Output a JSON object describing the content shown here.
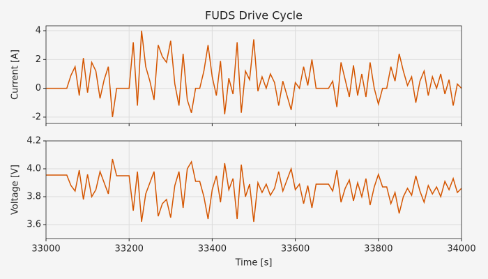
{
  "chart_data": [
    {
      "type": "line",
      "title": "FUDS Drive Cycle",
      "ylabel": "Current [A]",
      "color": "#d45500",
      "grid": true,
      "xlim": [
        33000,
        34000
      ],
      "ylim": [
        -2.44,
        4.34
      ],
      "yticks": [
        -2,
        0,
        2,
        4
      ],
      "x": [
        33000,
        33010,
        33020,
        33030,
        33040,
        33050,
        33060,
        33070,
        33080,
        33090,
        33100,
        33110,
        33120,
        33130,
        33140,
        33150,
        33160,
        33170,
        33180,
        33190,
        33200,
        33210,
        33220,
        33230,
        33240,
        33250,
        33260,
        33270,
        33280,
        33290,
        33300,
        33310,
        33320,
        33330,
        33340,
        33350,
        33360,
        33370,
        33380,
        33390,
        33400,
        33410,
        33420,
        33430,
        33440,
        33450,
        33460,
        33470,
        33480,
        33490,
        33500,
        33510,
        33520,
        33530,
        33540,
        33550,
        33560,
        33570,
        33580,
        33590,
        33600,
        33610,
        33620,
        33630,
        33640,
        33650,
        33660,
        33670,
        33680,
        33690,
        33700,
        33710,
        33720,
        33730,
        33740,
        33750,
        33760,
        33770,
        33780,
        33790,
        33800,
        33810,
        33820,
        33830,
        33840,
        33850,
        33860,
        33870,
        33880,
        33890,
        33900,
        33910,
        33920,
        33930,
        33940,
        33950,
        33960,
        33970,
        33980,
        33990,
        34000
      ],
      "values": [
        0,
        0,
        0,
        0,
        0,
        0,
        0.9,
        1.5,
        -0.5,
        2.1,
        -0.3,
        1.8,
        1.2,
        -0.7,
        0.6,
        1.5,
        -2,
        0,
        0,
        0,
        0,
        3.2,
        -1.2,
        4,
        1.5,
        0.5,
        -0.8,
        3,
        2.2,
        1.8,
        3.3,
        0.3,
        -1.2,
        2.4,
        -0.8,
        -1.7,
        0,
        0,
        1.2,
        3,
        0.8,
        -0.5,
        1.9,
        -1.8,
        0.7,
        -0.4,
        3.2,
        -1.7,
        1.2,
        0.6,
        3.4,
        -0.2,
        0.8,
        0,
        1,
        0.4,
        -1.2,
        0.5,
        -0.5,
        -1.5,
        0.4,
        0,
        1.5,
        0.2,
        2,
        0,
        0,
        0,
        0,
        0.5,
        -1.3,
        1.8,
        0.6,
        -0.6,
        1.6,
        -0.5,
        1,
        -0.6,
        1.8,
        0,
        -1.1,
        0,
        0,
        1.5,
        0.5,
        2.4,
        1.2,
        0.2,
        0.8,
        -1,
        0.5,
        1.2,
        -0.5,
        0.8,
        0,
        1,
        -0.4,
        0.6,
        -1.2,
        0.3,
        0
      ]
    },
    {
      "type": "line",
      "xlabel": "Time [s]",
      "ylabel": "Voltage [V]",
      "color": "#d45500",
      "grid": true,
      "xlim": [
        33000,
        34000
      ],
      "xticks": [
        33000,
        33200,
        33400,
        33600,
        33800,
        34000
      ],
      "ylim": [
        3.5,
        4.2
      ],
      "yticks": [
        3.6,
        3.8,
        {
          "value": 4,
          "label": "4.0"
        },
        4.2
      ],
      "x": [
        33000,
        33010,
        33020,
        33030,
        33040,
        33050,
        33060,
        33070,
        33080,
        33090,
        33100,
        33110,
        33120,
        33130,
        33140,
        33150,
        33160,
        33170,
        33180,
        33190,
        33200,
        33210,
        33220,
        33230,
        33240,
        33250,
        33260,
        33270,
        33280,
        33290,
        33300,
        33310,
        33320,
        33330,
        33340,
        33350,
        33360,
        33370,
        33380,
        33390,
        33400,
        33410,
        33420,
        33430,
        33440,
        33450,
        33460,
        33470,
        33480,
        33490,
        33500,
        33510,
        33520,
        33530,
        33540,
        33550,
        33560,
        33570,
        33580,
        33590,
        33600,
        33610,
        33620,
        33630,
        33640,
        33650,
        33660,
        33670,
        33680,
        33690,
        33700,
        33710,
        33720,
        33730,
        33740,
        33750,
        33760,
        33770,
        33780,
        33790,
        33800,
        33810,
        33820,
        33830,
        33840,
        33850,
        33860,
        33870,
        33880,
        33890,
        33900,
        33910,
        33920,
        33930,
        33940,
        33950,
        33960,
        33970,
        33980,
        33990,
        34000
      ],
      "values": [
        3.955,
        3.955,
        3.955,
        3.955,
        3.955,
        3.955,
        3.88,
        3.84,
        3.99,
        3.78,
        3.96,
        3.8,
        3.85,
        3.98,
        3.9,
        3.82,
        4.07,
        3.95,
        3.95,
        3.95,
        3.95,
        3.7,
        3.98,
        3.62,
        3.82,
        3.9,
        3.98,
        3.66,
        3.75,
        3.78,
        3.65,
        3.88,
        3.98,
        3.72,
        4.0,
        4.05,
        3.91,
        3.91,
        3.8,
        3.64,
        3.85,
        3.95,
        3.76,
        4.04,
        3.85,
        3.93,
        3.64,
        4.03,
        3.8,
        3.89,
        3.62,
        3.9,
        3.83,
        3.89,
        3.81,
        3.86,
        3.98,
        3.84,
        3.92,
        4.0,
        3.85,
        3.89,
        3.75,
        3.88,
        3.72,
        3.89,
        3.89,
        3.89,
        3.89,
        3.84,
        3.99,
        3.76,
        3.86,
        3.92,
        3.77,
        3.9,
        3.8,
        3.93,
        3.74,
        3.87,
        3.96,
        3.87,
        3.87,
        3.75,
        3.83,
        3.68,
        3.8,
        3.86,
        3.81,
        3.95,
        3.84,
        3.76,
        3.88,
        3.82,
        3.87,
        3.8,
        3.91,
        3.85,
        3.93,
        3.83,
        3.86
      ]
    }
  ]
}
